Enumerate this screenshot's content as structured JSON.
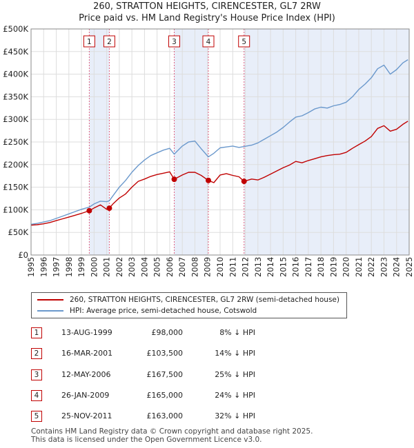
{
  "chart_data": {
    "type": "line",
    "title": "260, STRATTON HEIGHTS, CIRENCESTER, GL7 2RW",
    "subtitle": "Price paid vs. HM Land Registry's House Price Index (HPI)",
    "ylim": [
      0,
      500000
    ],
    "xlim": [
      1995,
      2025
    ],
    "y_ticks": [
      0,
      50000,
      100000,
      150000,
      200000,
      250000,
      300000,
      350000,
      400000,
      450000,
      500000
    ],
    "y_tick_labels": [
      "£0",
      "£50K",
      "£100K",
      "£150K",
      "£200K",
      "£250K",
      "£300K",
      "£350K",
      "£400K",
      "£450K",
      "£500K"
    ],
    "x_ticks": [
      "1995",
      "1996",
      "1997",
      "1998",
      "1999",
      "2000",
      "2001",
      "2002",
      "2003",
      "2004",
      "2005",
      "2006",
      "2007",
      "2008",
      "2009",
      "2010",
      "2011",
      "2012",
      "2013",
      "2014",
      "2015",
      "2016",
      "2017",
      "2018",
      "2019",
      "2020",
      "2021",
      "2022",
      "2023",
      "2024",
      "2025"
    ],
    "grid": true,
    "series": [
      {
        "name": "260, STRATTON HEIGHTS, CIRENCESTER, GL7 2RW (semi-detached house)",
        "color": "#c00000",
        "x": [
          1995.0,
          1995.5,
          1996.0,
          1996.5,
          1997.0,
          1997.5,
          1998.0,
          1998.5,
          1999.0,
          1999.62,
          2000.0,
          2000.5,
          2001.0,
          2001.21,
          2001.5,
          2002.0,
          2002.5,
          2003.0,
          2003.5,
          2004.0,
          2004.5,
          2005.0,
          2005.5,
          2006.0,
          2006.36,
          2006.6,
          2007.0,
          2007.5,
          2008.0,
          2008.5,
          2009.07,
          2009.5,
          2010.0,
          2010.5,
          2011.0,
          2011.5,
          2011.9,
          2012.5,
          2013.0,
          2013.5,
          2014.0,
          2014.5,
          2015.0,
          2015.5,
          2016.0,
          2016.5,
          2017.0,
          2017.5,
          2018.0,
          2018.5,
          2019.0,
          2019.5,
          2020.0,
          2020.5,
          2021.0,
          2021.5,
          2022.0,
          2022.5,
          2023.0,
          2023.5,
          2024.0,
          2024.5,
          2024.9
        ],
        "values": [
          66000,
          67000,
          69000,
          72000,
          76000,
          80000,
          84000,
          88000,
          92000,
          98000,
          104000,
          111000,
          101000,
          103500,
          113000,
          126000,
          135000,
          150000,
          163000,
          168000,
          174000,
          178000,
          181000,
          184000,
          167500,
          171000,
          177000,
          183000,
          183000,
          176000,
          165000,
          160000,
          177000,
          180000,
          176000,
          173000,
          163000,
          168000,
          166000,
          172000,
          179000,
          186000,
          193000,
          199000,
          207000,
          204000,
          209000,
          213000,
          217000,
          220000,
          222000,
          223000,
          227000,
          236000,
          244000,
          252000,
          262000,
          280000,
          286000,
          274000,
          278000,
          289000,
          296000
        ]
      },
      {
        "name": "HPI: Average price, semi-detached house, Cotswold",
        "color": "#6a98cc",
        "x": [
          1995.0,
          1995.5,
          1996.0,
          1996.5,
          1997.0,
          1997.5,
          1998.0,
          1998.5,
          1999.0,
          1999.62,
          2000.0,
          2000.5,
          2001.0,
          2001.21,
          2001.5,
          2002.0,
          2002.5,
          2003.0,
          2003.5,
          2004.0,
          2004.5,
          2005.0,
          2005.5,
          2006.0,
          2006.36,
          2006.6,
          2007.0,
          2007.5,
          2008.0,
          2008.5,
          2009.07,
          2009.5,
          2010.0,
          2010.5,
          2011.0,
          2011.5,
          2011.9,
          2012.5,
          2013.0,
          2013.5,
          2014.0,
          2014.5,
          2015.0,
          2015.5,
          2016.0,
          2016.5,
          2017.0,
          2017.5,
          2018.0,
          2018.5,
          2019.0,
          2019.5,
          2020.0,
          2020.5,
          2021.0,
          2021.5,
          2022.0,
          2022.5,
          2023.0,
          2023.5,
          2024.0,
          2024.5,
          2024.9
        ],
        "values": [
          68000,
          70000,
          73000,
          76000,
          81000,
          86000,
          91000,
          96000,
          101000,
          106000,
          113000,
          119000,
          118000,
          120000,
          131000,
          150000,
          165000,
          183000,
          198000,
          210000,
          220000,
          226000,
          232000,
          236000,
          223000,
          230000,
          241000,
          250000,
          252000,
          235000,
          217000,
          225000,
          237000,
          239000,
          241000,
          238000,
          240000,
          243000,
          248000,
          256000,
          264000,
          272000,
          282000,
          294000,
          305000,
          308000,
          315000,
          323000,
          327000,
          325000,
          330000,
          333000,
          338000,
          350000,
          366000,
          378000,
          392000,
          412000,
          420000,
          400000,
          410000,
          425000,
          432000
        ]
      }
    ],
    "transactions": [
      {
        "num": "1",
        "x": 1999.62,
        "price": 98000
      },
      {
        "num": "2",
        "x": 2001.21,
        "price": 103500
      },
      {
        "num": "3",
        "x": 2006.36,
        "price": 167500
      },
      {
        "num": "4",
        "x": 2009.07,
        "price": 165000
      },
      {
        "num": "5",
        "x": 2011.9,
        "price": 163000
      }
    ],
    "shaded_spans": [
      [
        1999.62,
        2001.21
      ],
      [
        2006.36,
        2009.07
      ],
      [
        2011.9,
        2025.0
      ]
    ]
  },
  "legend": {
    "property_label": "260, STRATTON HEIGHTS, CIRENCESTER, GL7 2RW (semi-detached house)",
    "hpi_label": "HPI: Average price, semi-detached house, Cotswold"
  },
  "table": [
    {
      "num": "1",
      "date": "13-AUG-1999",
      "price": "£98,000",
      "hpi": "8% ↓ HPI"
    },
    {
      "num": "2",
      "date": "16-MAR-2001",
      "price": "£103,500",
      "hpi": "14% ↓ HPI"
    },
    {
      "num": "3",
      "date": "12-MAY-2006",
      "price": "£167,500",
      "hpi": "25% ↓ HPI"
    },
    {
      "num": "4",
      "date": "26-JAN-2009",
      "price": "£165,000",
      "hpi": "24% ↓ HPI"
    },
    {
      "num": "5",
      "date": "25-NOV-2011",
      "price": "£163,000",
      "hpi": "32% ↓ HPI"
    }
  ],
  "footer": {
    "line1": "Contains HM Land Registry data © Crown copyright and database right 2025.",
    "line2": "This data is licensed under the Open Government Licence v3.0."
  },
  "colors": {
    "property": "#c00000",
    "hpi": "#6a98cc",
    "shade": "#e8eef9",
    "marker_line": "#e06080"
  }
}
